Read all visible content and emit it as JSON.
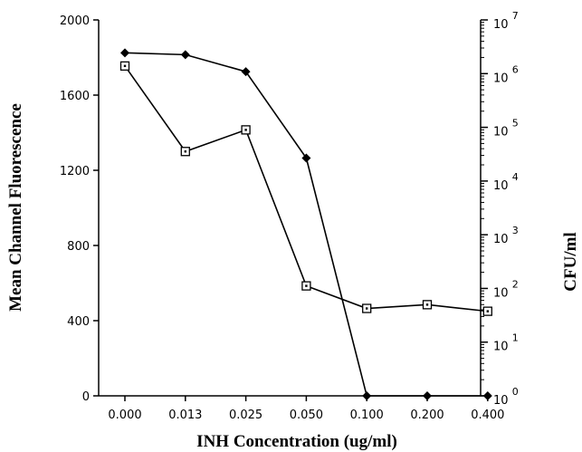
{
  "chart_data": {
    "type": "line",
    "categories": [
      "0.000",
      "0.013",
      "0.025",
      "0.050",
      "0.100",
      "0.200",
      "0.400"
    ],
    "xlabel": "INH  Concentration  (ug/ml)",
    "ylabel": "Mean  Channel  Fluorescence",
    "ylabel_right": "CFU/ml",
    "ylim": [
      0,
      2000
    ],
    "yticks": [
      "0",
      "400",
      "800",
      "1200",
      "1600",
      "2000"
    ],
    "y2lim": [
      0,
      7
    ],
    "y2_scale": "log10",
    "y2ticks": [
      {
        "base": "10",
        "exp": "0"
      },
      {
        "base": "10",
        "exp": "1"
      },
      {
        "base": "10",
        "exp": "2"
      },
      {
        "base": "10",
        "exp": "3"
      },
      {
        "base": "10",
        "exp": "4"
      },
      {
        "base": "10",
        "exp": "5"
      },
      {
        "base": "10",
        "exp": "6"
      },
      {
        "base": "10",
        "exp": "7"
      }
    ],
    "series": [
      {
        "marker": "filled-diamond",
        "axis": "left",
        "values": [
          1825,
          1815,
          1725,
          1265,
          0,
          0,
          0
        ]
      },
      {
        "marker": "open-square",
        "axis": "left",
        "values": [
          1755,
          1300,
          1415,
          585,
          465,
          485,
          450
        ]
      }
    ],
    "grid": false,
    "colors": {
      "line": "#000000",
      "background": "#ffffff"
    }
  }
}
